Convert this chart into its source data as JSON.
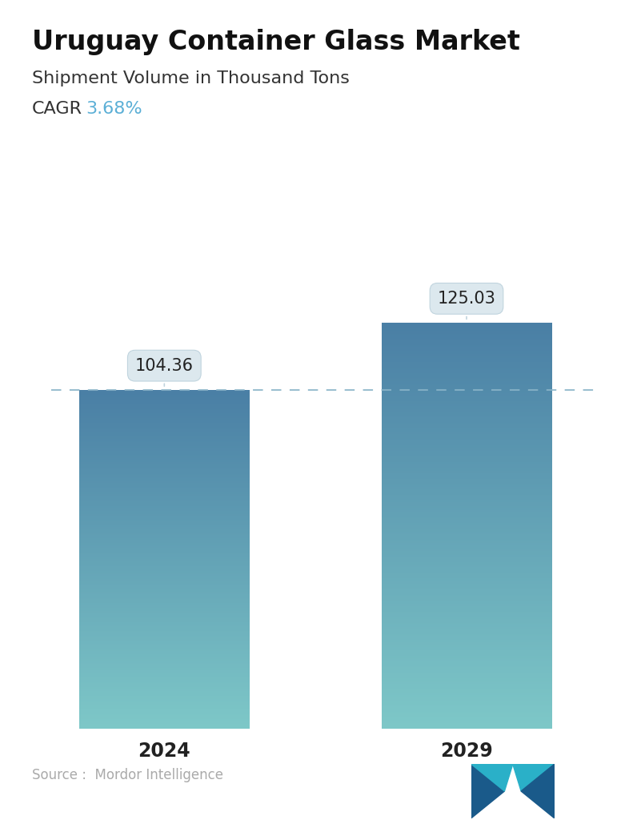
{
  "title": "Uruguay Container Glass Market",
  "subtitle": "Shipment Volume in Thousand Tons",
  "cagr_label": "CAGR",
  "cagr_value": "3.68%",
  "cagr_color": "#5bafd6",
  "categories": [
    "2024",
    "2029"
  ],
  "values": [
    104.36,
    125.03
  ],
  "bar_top_color": "#4a7fa5",
  "bar_bottom_color": "#7ec8c8",
  "dashed_line_color": "#8ab4c8",
  "dashed_line_value": 104.36,
  "source_text": "Source :  Mordor Intelligence",
  "source_color": "#aaaaaa",
  "background_color": "#ffffff",
  "title_fontsize": 24,
  "subtitle_fontsize": 16,
  "cagr_fontsize": 16,
  "xlabel_fontsize": 17,
  "annotation_fontsize": 15,
  "ylim": [
    0,
    148
  ],
  "bar_positions": [
    1.0,
    2.6
  ],
  "bar_width": 0.9,
  "xlim": [
    0.4,
    3.3
  ]
}
